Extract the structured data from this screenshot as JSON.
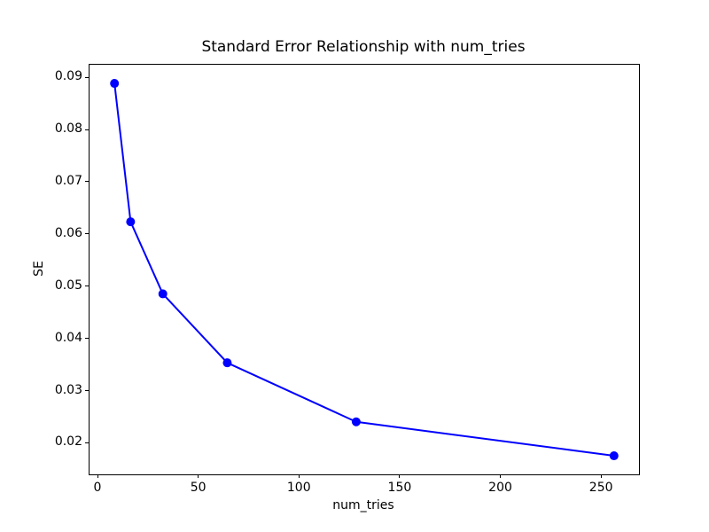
{
  "chart_data": {
    "type": "line",
    "title": "Standard Error Relationship with num_tries",
    "xlabel": "num_tries",
    "ylabel": "SE",
    "series": [
      {
        "name": "SE",
        "x": [
          8,
          16,
          32,
          64,
          128,
          256
        ],
        "y": [
          0.089,
          0.0625,
          0.0487,
          0.0355,
          0.0242,
          0.0177
        ],
        "color": "#0000ff",
        "marker": "circle",
        "line_width": 2,
        "marker_radius": 5
      }
    ],
    "xlim": [
      -4.4,
      268.4
    ],
    "ylim": [
      0.01414,
      0.09257
    ],
    "x_ticks": [
      0,
      50,
      100,
      150,
      200,
      250
    ],
    "x_tick_labels": [
      "0",
      "50",
      "100",
      "150",
      "200",
      "250"
    ],
    "y_ticks": [
      0.02,
      0.03,
      0.04,
      0.05,
      0.06,
      0.07,
      0.08,
      0.09
    ],
    "y_tick_labels": [
      "0.02",
      "0.03",
      "0.04",
      "0.05",
      "0.06",
      "0.07",
      "0.08",
      "0.09"
    ],
    "grid": false,
    "legend_position": "none",
    "background_color": "#ffffff",
    "spine_color": "#000000",
    "text_color": "#000000"
  }
}
